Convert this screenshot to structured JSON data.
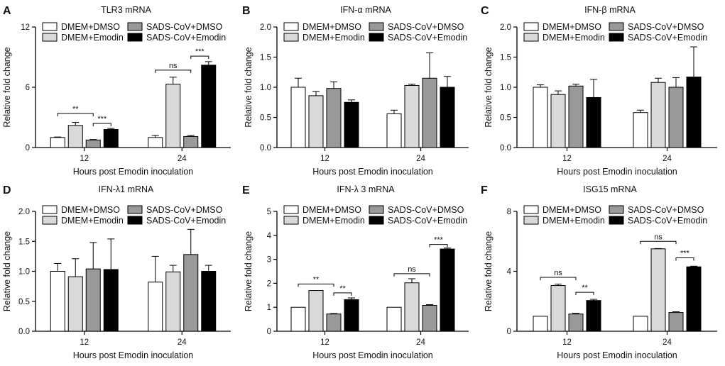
{
  "figure": {
    "x_axis_common": "Hours post Emodin inoculation"
  },
  "chart_data": [
    {
      "panel": "A",
      "type": "bar",
      "title": "TLR3 mRNA",
      "xlabel": "Hours post Emodin inoculation",
      "ylabel": "Relative fold change",
      "ylim": [
        0,
        12
      ],
      "yticks": [
        "0",
        "6",
        "12"
      ],
      "categories": [
        "12",
        "24"
      ],
      "series": [
        {
          "name": "DMEM+DMSO",
          "color": "#ffffff",
          "values": [
            1.0,
            1.0
          ],
          "errors": [
            0.05,
            0.2
          ]
        },
        {
          "name": "DMEM+Emodin",
          "color": "#d9d9d9",
          "values": [
            2.2,
            6.3
          ],
          "errors": [
            0.3,
            0.7
          ]
        },
        {
          "name": "SADS-CoV+DMSO",
          "color": "#999999",
          "values": [
            0.75,
            1.1
          ],
          "errors": [
            0.05,
            0.1
          ]
        },
        {
          "name": "SADS-CoV+Emodin",
          "color": "#000000",
          "values": [
            1.8,
            8.2
          ],
          "errors": [
            0.1,
            0.35
          ]
        }
      ],
      "annotations": [
        {
          "text": "**",
          "cat": 0,
          "from": 0,
          "to": 2,
          "y": 3.4
        },
        {
          "text": "***",
          "cat": 0,
          "from": 2,
          "to": 3,
          "y": 2.4
        },
        {
          "text": "ns",
          "cat": 1,
          "from": 0,
          "to": 2,
          "y": 7.7
        },
        {
          "text": "***",
          "cat": 1,
          "from": 2,
          "to": 3,
          "y": 9.1
        }
      ]
    },
    {
      "panel": "B",
      "type": "bar",
      "title": "IFN-α mRNA",
      "xlabel": "Hours post Emodin inoculation",
      "ylabel": "Relative fold change",
      "ylim": [
        0,
        2.0
      ],
      "yticks": [
        "0.0",
        "0.5",
        "1.0",
        "1.5",
        "2.0"
      ],
      "categories": [
        "12",
        "24"
      ],
      "series": [
        {
          "name": "DMEM+DMSO",
          "color": "#ffffff",
          "values": [
            1.0,
            0.56
          ],
          "errors": [
            0.15,
            0.06
          ]
        },
        {
          "name": "DMEM+Emodin",
          "color": "#d9d9d9",
          "values": [
            0.86,
            1.03
          ],
          "errors": [
            0.07,
            0.02
          ]
        },
        {
          "name": "SADS-CoV+DMSO",
          "color": "#999999",
          "values": [
            0.98,
            1.15
          ],
          "errors": [
            0.11,
            0.42
          ]
        },
        {
          "name": "SADS-CoV+Emodin",
          "color": "#000000",
          "values": [
            0.75,
            1.0
          ],
          "errors": [
            0.04,
            0.18
          ]
        }
      ],
      "annotations": []
    },
    {
      "panel": "C",
      "type": "bar",
      "title": "IFN-β mRNA",
      "xlabel": "Hours post Emodin inoculation",
      "ylabel": "Relative fold change",
      "ylim": [
        0,
        2.0
      ],
      "yticks": [
        "0.0",
        "0.5",
        "1.0",
        "1.5",
        "2.0"
      ],
      "categories": [
        "12",
        "24"
      ],
      "series": [
        {
          "name": "DMEM+DMSO",
          "color": "#ffffff",
          "values": [
            1.0,
            0.58
          ],
          "errors": [
            0.04,
            0.04
          ]
        },
        {
          "name": "DMEM+Emodin",
          "color": "#d9d9d9",
          "values": [
            0.88,
            1.08
          ],
          "errors": [
            0.06,
            0.07
          ]
        },
        {
          "name": "SADS-CoV+DMSO",
          "color": "#999999",
          "values": [
            1.02,
            1.0
          ],
          "errors": [
            0.03,
            0.16
          ]
        },
        {
          "name": "SADS-CoV+Emodin",
          "color": "#000000",
          "values": [
            0.83,
            1.17
          ],
          "errors": [
            0.3,
            0.5
          ]
        }
      ],
      "annotations": []
    },
    {
      "panel": "D",
      "type": "bar",
      "title": "IFN-λ1 mRNA",
      "xlabel": "Hours post Emodin inoculation",
      "ylabel": "Relative fold change",
      "ylim": [
        0,
        2.0
      ],
      "yticks": [
        "0.0",
        "0.5",
        "1.0",
        "1.5",
        "2.0"
      ],
      "categories": [
        "12",
        "24"
      ],
      "series": [
        {
          "name": "DMEM+DMSO",
          "color": "#ffffff",
          "values": [
            1.0,
            0.82
          ],
          "errors": [
            0.13,
            0.43
          ]
        },
        {
          "name": "DMEM+Emodin",
          "color": "#d9d9d9",
          "values": [
            0.91,
            0.99
          ],
          "errors": [
            0.3,
            0.11
          ]
        },
        {
          "name": "SADS-CoV+DMSO",
          "color": "#999999",
          "values": [
            1.04,
            1.28
          ],
          "errors": [
            0.44,
            0.42
          ]
        },
        {
          "name": "SADS-CoV+Emodin",
          "color": "#000000",
          "values": [
            1.03,
            1.0
          ],
          "errors": [
            0.51,
            0.1
          ]
        }
      ],
      "annotations": []
    },
    {
      "panel": "E",
      "type": "bar",
      "title": "IFN-λ 3 mRNA",
      "xlabel": "Hours post Emodin inoculation",
      "ylabel": "Relative fold change",
      "ylim": [
        0,
        5
      ],
      "yticks": [
        "0",
        "1",
        "2",
        "3",
        "4",
        "5"
      ],
      "categories": [
        "12",
        "24"
      ],
      "series": [
        {
          "name": "DMEM+DMSO",
          "color": "#ffffff",
          "values": [
            1.0,
            1.0
          ],
          "errors": [
            0.0,
            0.0
          ]
        },
        {
          "name": "DMEM+Emodin",
          "color": "#d9d9d9",
          "values": [
            1.7,
            2.02
          ],
          "errors": [
            0.0,
            0.17
          ]
        },
        {
          "name": "SADS-CoV+DMSO",
          "color": "#999999",
          "values": [
            0.72,
            1.08
          ],
          "errors": [
            0.02,
            0.03
          ]
        },
        {
          "name": "SADS-CoV+Emodin",
          "color": "#000000",
          "values": [
            1.32,
            3.43
          ],
          "errors": [
            0.07,
            0.04
          ]
        }
      ],
      "annotations": [
        {
          "text": "**",
          "cat": 0,
          "from": 0,
          "to": 2,
          "y": 1.97
        },
        {
          "text": "**",
          "cat": 0,
          "from": 2,
          "to": 3,
          "y": 1.6
        },
        {
          "text": "ns",
          "cat": 1,
          "from": 0,
          "to": 2,
          "y": 2.4
        },
        {
          "text": "***",
          "cat": 1,
          "from": 2,
          "to": 3,
          "y": 3.62
        }
      ]
    },
    {
      "panel": "F",
      "type": "bar",
      "title": "ISG15 mRNA",
      "xlabel": "Hours post Emodin inoculation",
      "ylabel": "Relative fold change",
      "ylim": [
        0,
        8
      ],
      "yticks": [
        "0",
        "4",
        "8"
      ],
      "categories": [
        "12",
        "24"
      ],
      "series": [
        {
          "name": "DMEM+DMSO",
          "color": "#ffffff",
          "values": [
            1.0,
            1.0
          ],
          "errors": [
            0.0,
            0.0
          ]
        },
        {
          "name": "DMEM+Emodin",
          "color": "#d9d9d9",
          "values": [
            3.05,
            5.5
          ],
          "errors": [
            0.1,
            0.02
          ]
        },
        {
          "name": "SADS-CoV+DMSO",
          "color": "#999999",
          "values": [
            1.15,
            1.25
          ],
          "errors": [
            0.05,
            0.05
          ]
        },
        {
          "name": "SADS-CoV+Emodin",
          "color": "#000000",
          "values": [
            2.05,
            4.3
          ],
          "errors": [
            0.08,
            0.04
          ]
        }
      ],
      "annotations": [
        {
          "text": "ns",
          "cat": 0,
          "from": 0,
          "to": 2,
          "y": 3.6
        },
        {
          "text": "**",
          "cat": 0,
          "from": 2,
          "to": 3,
          "y": 2.6
        },
        {
          "text": "ns",
          "cat": 1,
          "from": 0,
          "to": 2,
          "y": 6.0
        },
        {
          "text": "***",
          "cat": 1,
          "from": 2,
          "to": 3,
          "y": 4.9
        }
      ]
    }
  ]
}
